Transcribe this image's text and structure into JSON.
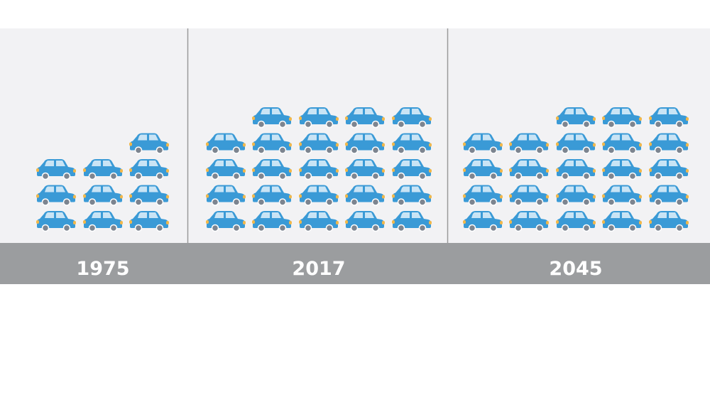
{
  "chart_data": {
    "type": "pictogram",
    "unit_icon": "car-icon",
    "categories": [
      "1975",
      "2017",
      "2045"
    ],
    "columns": [
      [
        3,
        3,
        4
      ],
      [
        4,
        5,
        5,
        5,
        5
      ],
      [
        4,
        4,
        5,
        5,
        5
      ]
    ],
    "values": [
      10,
      24,
      23
    ],
    "colors": {
      "car": "#3a9ad6",
      "window": "#c9e4f5",
      "light": "#f2b84b",
      "wheel": "#7d8590",
      "panel": "#f2f2f4",
      "band": "#9b9d9f",
      "label": "#ffffff",
      "divider": "#9a9a9a"
    }
  }
}
